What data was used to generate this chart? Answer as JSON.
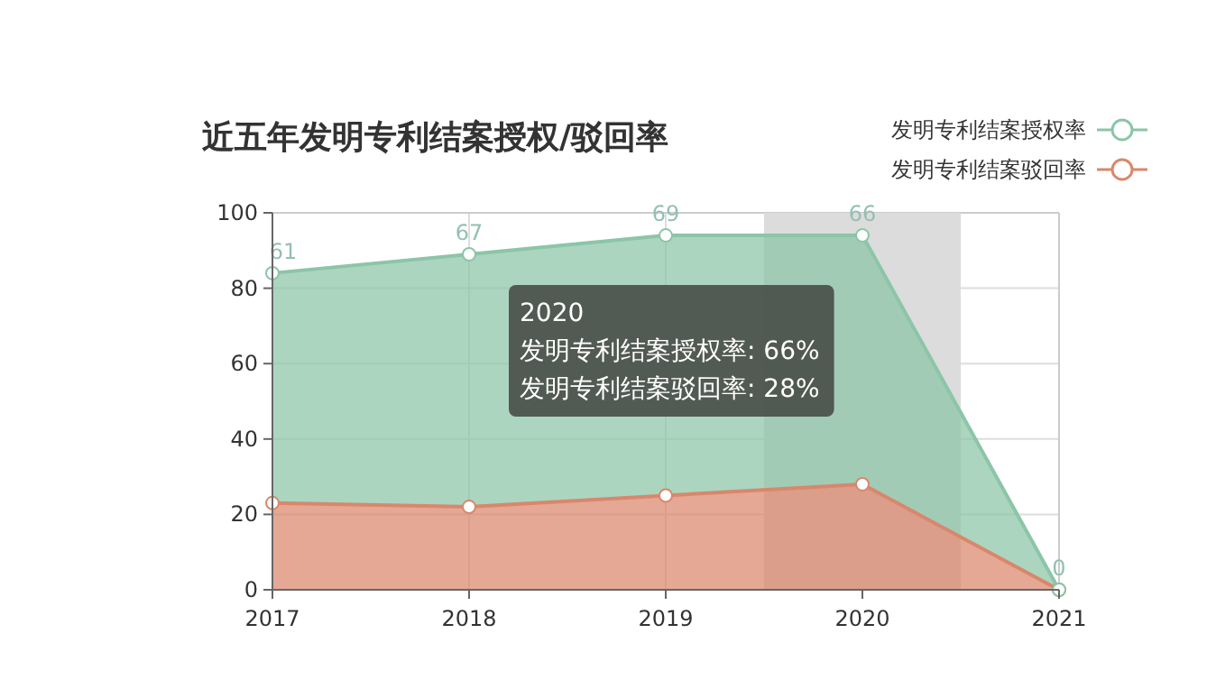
{
  "chart_data": {
    "type": "area",
    "title": "近五年发明专利结案授权/驳回率",
    "categories": [
      "2017",
      "2018",
      "2019",
      "2020",
      "2021"
    ],
    "stacked": true,
    "series": [
      {
        "name": "发明专利结案驳回率",
        "color": "#d9876c",
        "values": [
          23,
          22,
          25,
          28,
          0
        ]
      },
      {
        "name": "发明专利结案授权率",
        "color": "#8cc5a8",
        "values": [
          61,
          67,
          69,
          66,
          0
        ],
        "value_labels": [
          "61",
          "67",
          "69",
          "66",
          "0"
        ]
      }
    ],
    "ylim": [
      0,
      100
    ],
    "yticks": [
      0,
      20,
      40,
      60,
      80,
      100
    ],
    "grid": true,
    "legend": "top right",
    "marker": "circle",
    "bands": [
      {
        "axis": "x",
        "from": "2020",
        "to": "2020",
        "color": "#dcdcdc"
      }
    ],
    "annotations": [
      "2020",
      "发明专利结案授权率: 66%",
      "发明专利结案驳回率: 28%"
    ]
  }
}
